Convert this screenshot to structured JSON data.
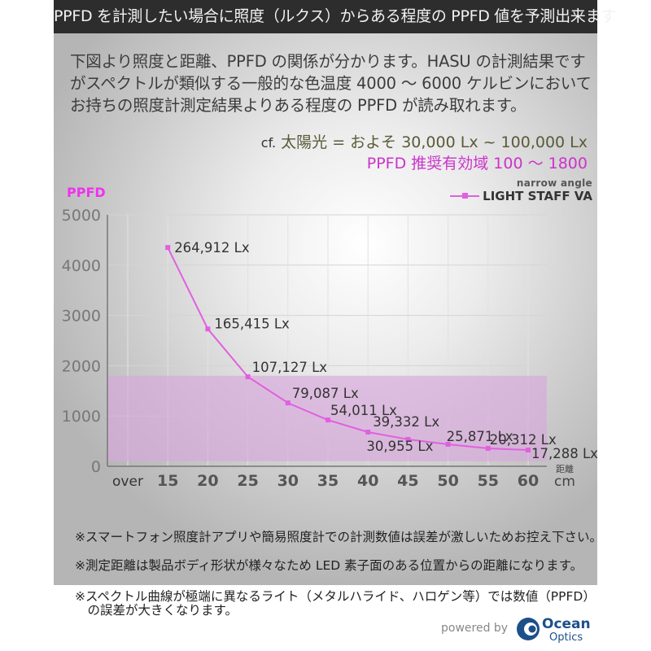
{
  "header": {
    "title": "PPFD を計測したい場合に照度（ルクス）からある程度の PPFD 値を予測出来ます"
  },
  "intro": {
    "lines": [
      "下図より照度と距離、PPFD の関係が分かります。HASU の計測結果です",
      "がスペクトルが類似する一般的な色温度 4000 ～ 6000 ケルビンにおいて",
      "お持ちの照度計測定結果よりある程度の PPFD が読み取れます。"
    ],
    "cf_prefix": "cf.",
    "cf_text": "太陽光 = およそ 30,000 Lx ~ 100,000 Lx",
    "ppfd_range": "PPFD 推奨有効域 100 ～ 1800"
  },
  "legend": {
    "subtitle": "narrow angle",
    "series_name": "LIGHT STAFF VA"
  },
  "chart_data": {
    "type": "line",
    "title": "",
    "ylabel": "PPFD",
    "xlabel": "距離 cm",
    "x_unit_label": "距離",
    "x_unit": "cm",
    "categories": [
      "over",
      "15",
      "20",
      "25",
      "30",
      "35",
      "40",
      "45",
      "50",
      "55",
      "60"
    ],
    "yticks": [
      "0",
      "1000",
      "2000",
      "3000",
      "4000",
      "5000"
    ],
    "ylim": [
      0,
      5000
    ],
    "grid": true,
    "legend_position": "top-right",
    "recommended_band": {
      "label": "PPFD 推奨有効域",
      "from": 100,
      "to": 1800,
      "color": "#d9a8dc"
    },
    "series": [
      {
        "name": "LIGHT STAFF VA",
        "color": "#e060e0",
        "x": [
          15,
          20,
          25,
          30,
          35,
          40,
          45,
          50,
          55,
          60
        ],
        "values": [
          4350,
          2730,
          1780,
          1260,
          920,
          680,
          535,
          437,
          356,
          324
        ],
        "point_labels": [
          "264,912 Lx",
          "165,415 Lx",
          "107,127 Lx",
          "79,087 Lx",
          "54,011 Lx",
          "39,332 Lx",
          "30,955 Lx",
          "25,871 Lx",
          "20,312 Lx",
          "17,288 Lx"
        ]
      }
    ]
  },
  "notes": [
    "※スマートフォン照度計アプリや簡易照度計での計測数値は誤差が激しいためお控え下さい。",
    "※測定距離は製品ボディ形状が様々なため LED 素子面のある位置からの距離になります。",
    "※スペクトル曲線が極端に異なるライト（メタルハライド、ハロゲン等）では数値（PPFD）",
    "　の誤差が大きくなります。"
  ],
  "footer": {
    "powered_by": "powered by",
    "brand_line1": "Ocean",
    "brand_line2": "Optics",
    "brand_color": "#1d4f8a"
  }
}
